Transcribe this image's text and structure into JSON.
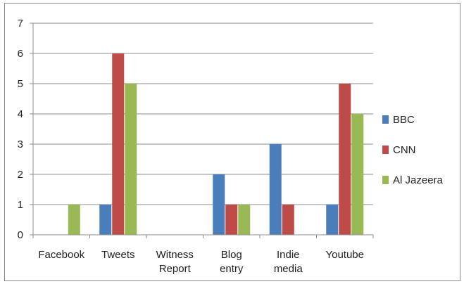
{
  "chart_data": {
    "type": "bar",
    "title": "",
    "xlabel": "",
    "ylabel": "",
    "categories": [
      [
        "Facebook"
      ],
      [
        "Tweets"
      ],
      [
        "Witness",
        "Report"
      ],
      [
        "Blog",
        "entry"
      ],
      [
        "Indie",
        "media"
      ],
      [
        "Youtube"
      ]
    ],
    "ylim": [
      0,
      7
    ],
    "yticks": [
      0,
      1,
      2,
      3,
      4,
      5,
      6,
      7
    ],
    "grid": true,
    "legend_position": "right",
    "series": [
      {
        "name": "BBC",
        "color": "#4a7ebb",
        "values": [
          0,
          1,
          0,
          2,
          3,
          1
        ]
      },
      {
        "name": "CNN",
        "color": "#be4b48",
        "values": [
          0,
          6,
          0,
          1,
          1,
          5
        ]
      },
      {
        "name": "Al Jazeera",
        "color": "#98b954",
        "values": [
          1,
          5,
          0,
          1,
          0,
          4
        ]
      }
    ]
  }
}
